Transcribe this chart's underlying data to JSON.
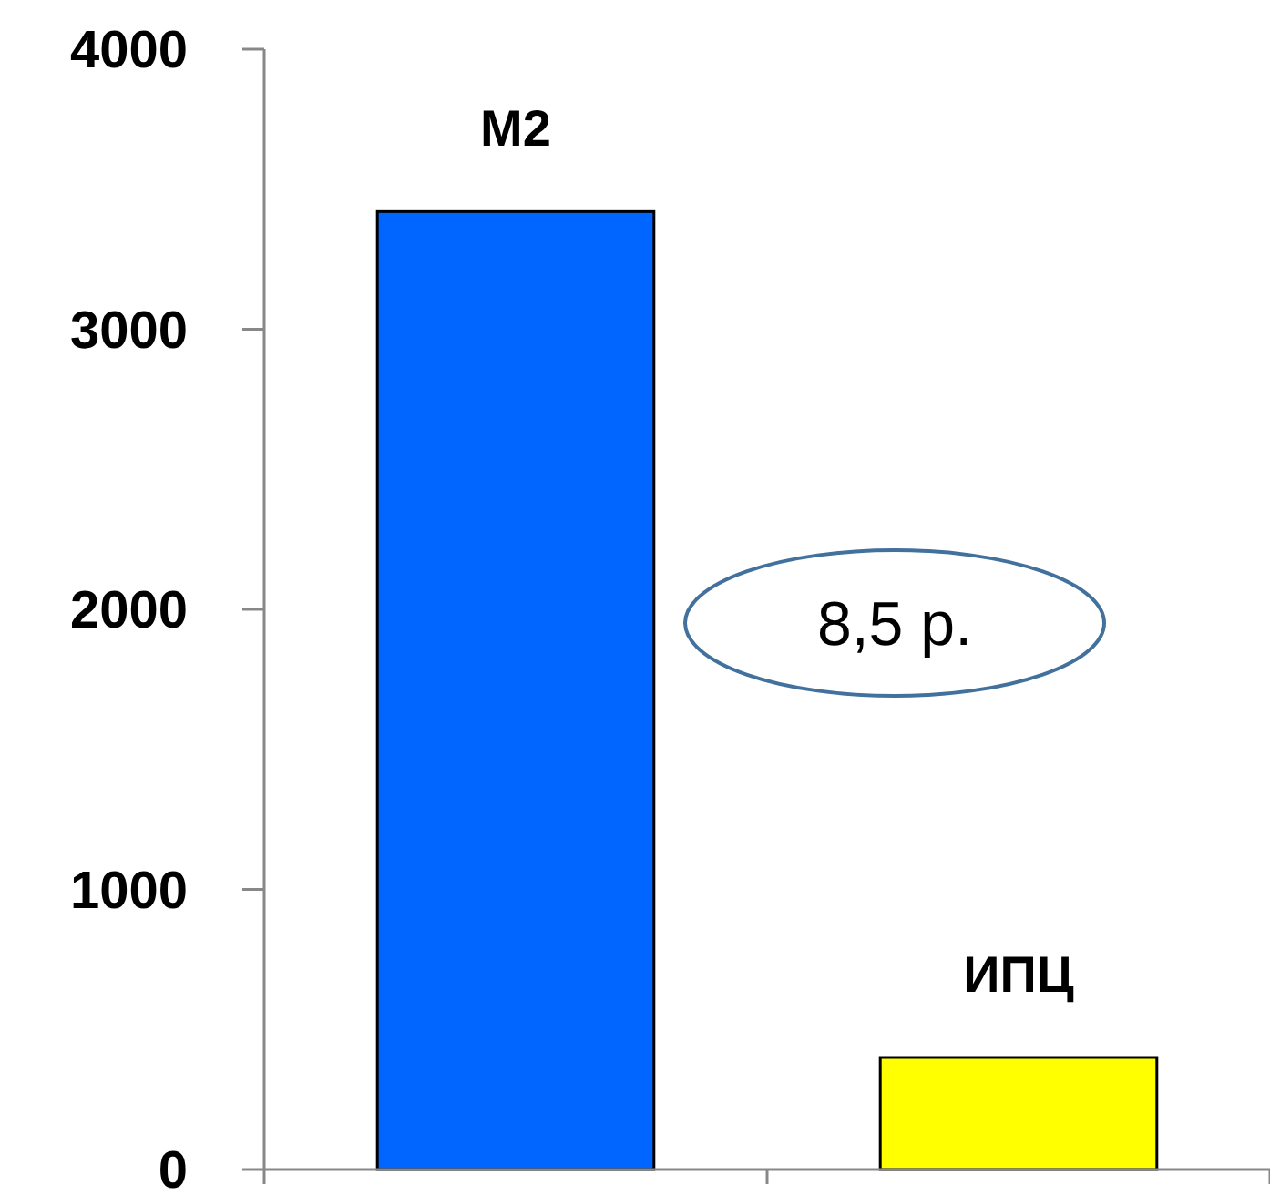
{
  "chart_data": {
    "type": "bar",
    "categories": [
      "M2",
      "ИПЦ"
    ],
    "values": [
      3420,
      400
    ],
    "colors": [
      "#0066ff",
      "#ffff00"
    ],
    "ylim": [
      0,
      4000
    ],
    "yticks": [
      0,
      1000,
      2000,
      3000,
      4000
    ],
    "grid": false,
    "annotations": [
      "8,5 р."
    ]
  }
}
